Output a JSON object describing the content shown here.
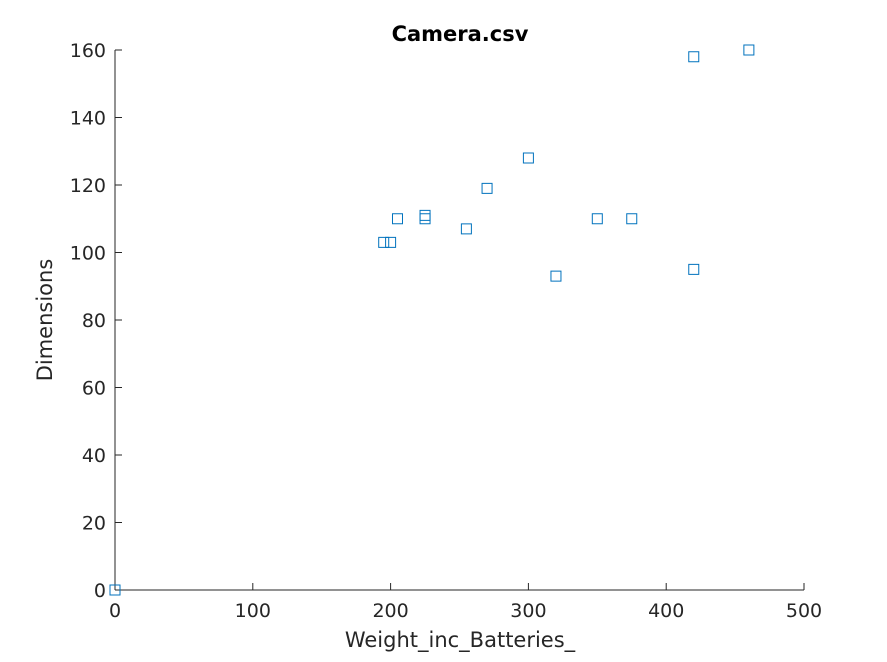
{
  "chart_data": {
    "type": "scatter",
    "title": "Camera.csv",
    "xlabel": "Weight_inc_Batteries_",
    "ylabel": "Dimensions",
    "xlim": [
      0,
      500
    ],
    "ylim": [
      0,
      160
    ],
    "xticks": [
      0,
      100,
      200,
      300,
      400,
      500
    ],
    "yticks": [
      0,
      20,
      40,
      60,
      80,
      100,
      120,
      140,
      160
    ],
    "grid": false,
    "marker": "square",
    "marker_color": "#0072bd",
    "axis_color": "#262626",
    "series": [
      {
        "name": "Camera.csv",
        "points": [
          {
            "x": 0,
            "y": 0
          },
          {
            "x": 195,
            "y": 103
          },
          {
            "x": 200,
            "y": 103
          },
          {
            "x": 205,
            "y": 110
          },
          {
            "x": 225,
            "y": 111
          },
          {
            "x": 225,
            "y": 110
          },
          {
            "x": 255,
            "y": 107
          },
          {
            "x": 270,
            "y": 119
          },
          {
            "x": 300,
            "y": 128
          },
          {
            "x": 320,
            "y": 93
          },
          {
            "x": 350,
            "y": 110
          },
          {
            "x": 375,
            "y": 110
          },
          {
            "x": 420,
            "y": 158
          },
          {
            "x": 420,
            "y": 95
          },
          {
            "x": 460,
            "y": 160
          }
        ]
      }
    ]
  }
}
